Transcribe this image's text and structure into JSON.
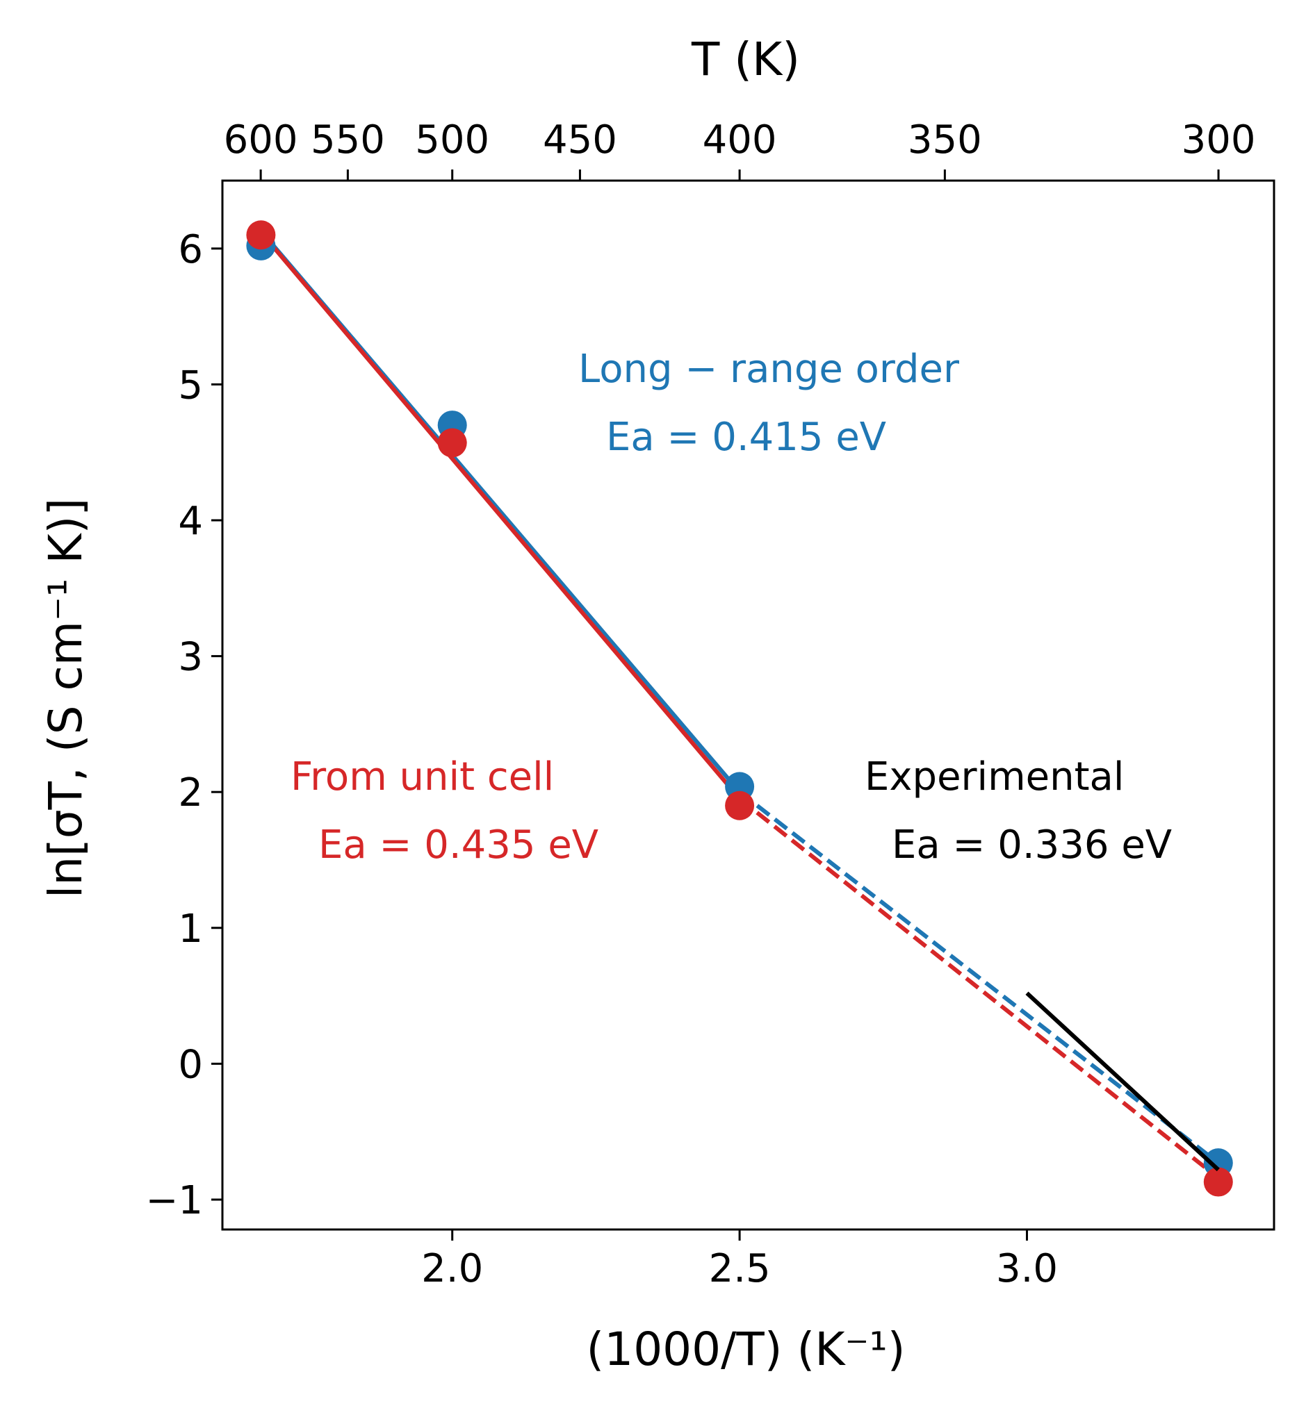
{
  "chart_data": {
    "type": "line",
    "xlabel": "(1000/T) (K⁻¹)",
    "ylabel": "ln[σT, (S cm⁻¹ K)]",
    "top_xlabel": "T (K)",
    "xlim": [
      1.6,
      3.43
    ],
    "ylim": [
      -1.22,
      6.5
    ],
    "x_ticks": [
      2.0,
      2.5,
      3.0
    ],
    "x_tick_labels": [
      "2.0",
      "2.5",
      "3.0"
    ],
    "y_ticks": [
      -1,
      0,
      1,
      2,
      3,
      4,
      5,
      6
    ],
    "y_tick_labels": [
      "−1",
      "0",
      "1",
      "2",
      "3",
      "4",
      "5",
      "6"
    ],
    "top_ticks": [
      600,
      550,
      500,
      450,
      400,
      350,
      300
    ],
    "top_tick_labels": [
      "600",
      "550",
      "500",
      "450",
      "400",
      "350",
      "300"
    ],
    "grid": false,
    "series": [
      {
        "color": "#1f77b4",
        "x": [
          1.667,
          2.0,
          2.5,
          3.333
        ],
        "y": [
          6.02,
          4.7,
          2.04,
          -0.73
        ],
        "fit_solid": [
          [
            1.667,
            6.13
          ],
          [
            2.5,
            2.0
          ]
        ],
        "fit_dashed": [
          [
            2.5,
            2.0
          ],
          [
            3.333,
            -0.73
          ]
        ]
      },
      {
        "color": "#d62728",
        "x": [
          1.667,
          2.0,
          2.5,
          3.333
        ],
        "y": [
          6.1,
          4.57,
          1.9,
          -0.87
        ],
        "fit_solid": [
          [
            1.667,
            6.12
          ],
          [
            2.5,
            1.95
          ]
        ],
        "fit_dashed": [
          [
            2.5,
            1.95
          ],
          [
            3.333,
            -0.84
          ]
        ]
      },
      {
        "color": "#000000",
        "x": [
          3.0,
          3.333
        ],
        "y": [
          0.52,
          -0.78
        ]
      }
    ],
    "annotations": [
      {
        "text": "Long − range order",
        "color": "#1f77b4"
      },
      {
        "text": "Ea = 0.415 eV",
        "color": "#1f77b4"
      },
      {
        "text": "From unit cell",
        "color": "#d62728"
      },
      {
        "text": "Ea = 0.435 eV",
        "color": "#d62728"
      },
      {
        "text": "Experimental",
        "color": "#000000"
      },
      {
        "text": "Ea = 0.336 eV",
        "color": "#000000"
      }
    ]
  }
}
